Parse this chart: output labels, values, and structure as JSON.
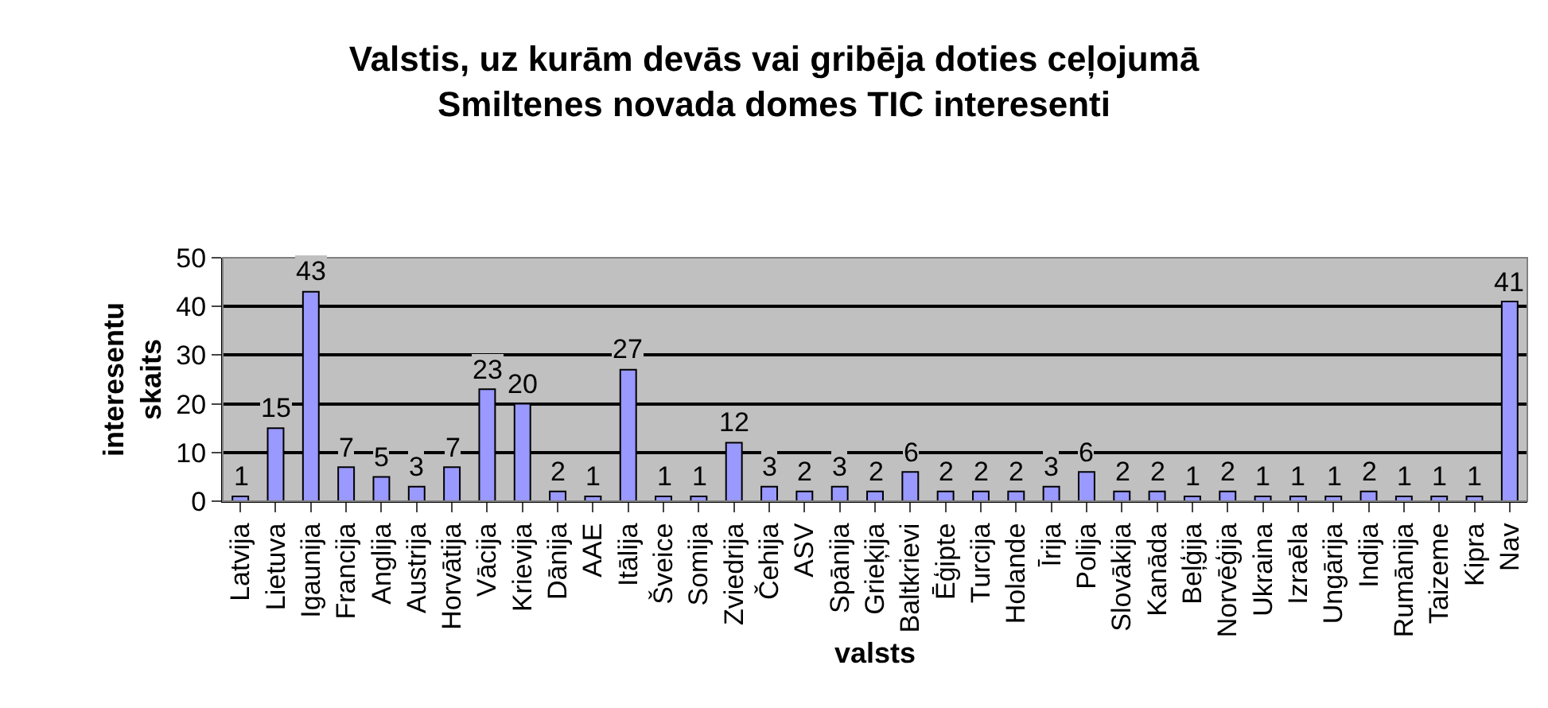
{
  "chart_data": {
    "type": "bar",
    "title": "Valstis, uz kurām devās vai gribēja doties ceļojumā\nSmiltenes novada domes TIC interesenti",
    "xlabel": "valsts",
    "ylabel": "interesentu skaits",
    "categories": [
      "Latvija",
      "Lietuva",
      "Igaunija",
      "Francija",
      "Anglija",
      "Austrija",
      "Horvātija",
      "Vācija",
      "Krievija",
      "Dānija",
      "AAE",
      "Itālija",
      "Šveice",
      "Somija",
      "Zviedrija",
      "Čehija",
      "ASV",
      "Spānija",
      "Grieķija",
      "Baltkrievi",
      "Ēģipte",
      "Turcija",
      "Holande",
      "Īrija",
      "Polija",
      "Slovākija",
      "Kanāda",
      "Beļģija",
      "Norvēģija",
      "Ukraina",
      "Izraēla",
      "Ungārija",
      "Indija",
      "Rumānija",
      "Taizeme",
      "Kipra",
      "Nav"
    ],
    "values": [
      1,
      15,
      43,
      7,
      5,
      3,
      7,
      23,
      20,
      2,
      1,
      27,
      1,
      1,
      12,
      3,
      2,
      3,
      2,
      6,
      2,
      2,
      2,
      3,
      6,
      2,
      2,
      1,
      2,
      1,
      1,
      1,
      2,
      1,
      1,
      1,
      41
    ],
    "color": "#9999ff",
    "ylim": [
      0,
      50
    ],
    "yticks": [
      0,
      10,
      20,
      30,
      40,
      50
    ],
    "grid": "y",
    "legend": false,
    "data_labels": true
  }
}
